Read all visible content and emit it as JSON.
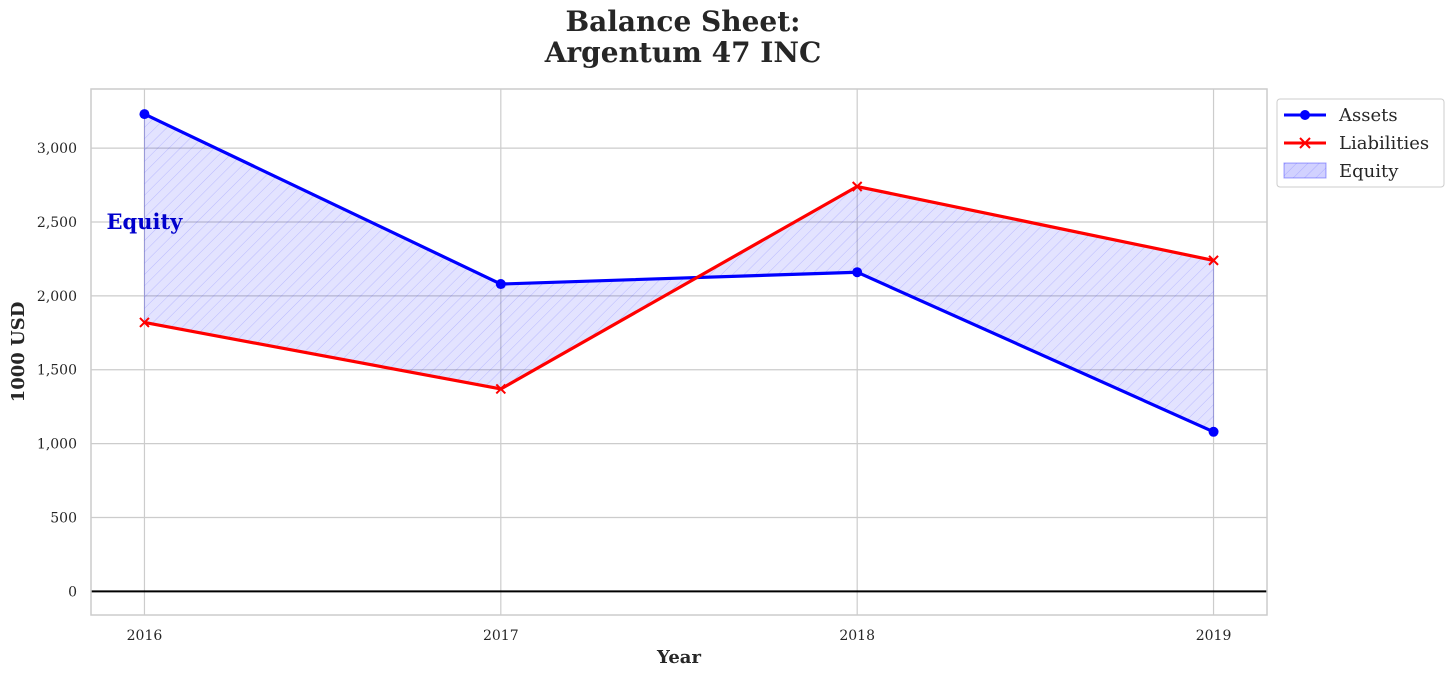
{
  "chart_data": {
    "type": "line",
    "title_line1": "Balance Sheet:",
    "title_line2": "Argentum 47 INC",
    "xlabel": "Year",
    "ylabel": "1000 USD",
    "x": [
      "2016",
      "2017",
      "2018",
      "2019"
    ],
    "xlim": [
      -0.15,
      3.15
    ],
    "ylim": [
      -160,
      3400
    ],
    "yticks": [
      0,
      500,
      1000,
      1500,
      2000,
      2500,
      3000
    ],
    "ytick_labels": [
      "0",
      "500",
      "1,000",
      "1,500",
      "2,000",
      "2,500",
      "3,000"
    ],
    "grid": true,
    "legend_placement": "outside-top-right",
    "series": [
      {
        "name": "Assets",
        "values": [
          3230,
          2080,
          2160,
          1080
        ],
        "color": "#0000ff",
        "marker": "circle"
      },
      {
        "name": "Liabilities",
        "values": [
          1820,
          1370,
          2740,
          2240
        ],
        "color": "#ff0000",
        "marker": "x"
      }
    ],
    "fill": {
      "name": "Equity",
      "between": [
        "Assets",
        "Liabilities"
      ],
      "color": "#0000ff",
      "hatch": "diagonal"
    },
    "annotation": {
      "text": "Equity",
      "x": 0,
      "y": 2500
    },
    "zero_line": 0
  }
}
